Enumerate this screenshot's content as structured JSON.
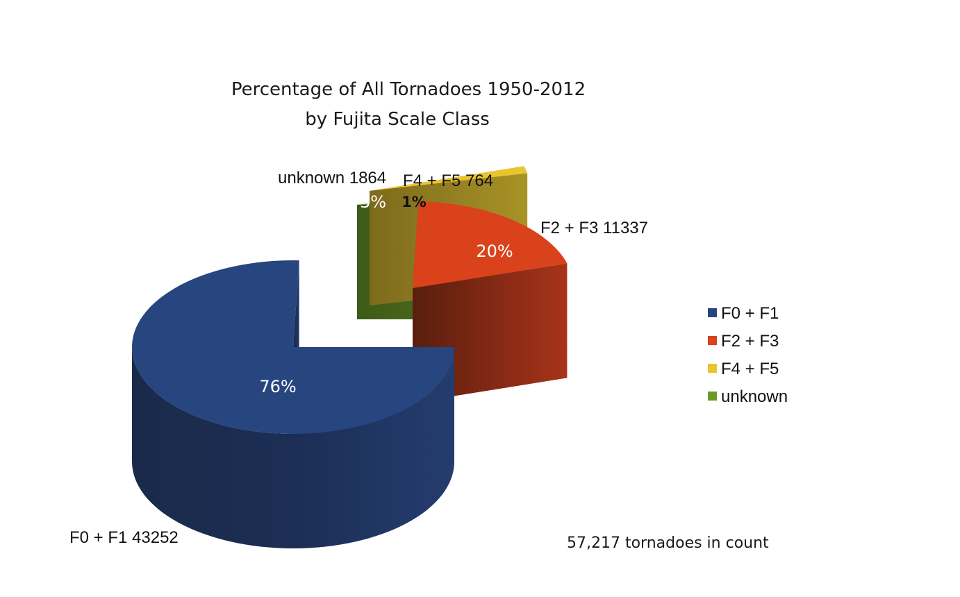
{
  "chart_data": {
    "type": "pie",
    "title": "Percentage of All Tornadoes 1950-2012",
    "subtitle": "by Fujita Scale Class",
    "categories": [
      "F0 + F1",
      "F2 + F3",
      "F4 + F5",
      "unknown"
    ],
    "values": [
      43252,
      11337,
      764,
      1864
    ],
    "percentages": [
      "76%",
      "20%",
      "1%",
      "3%"
    ],
    "slice_labels": [
      "F0 + F1 43252",
      "F2 + F3 11337",
      "F4 + F5 764",
      "unknown 1864"
    ],
    "colors": [
      "#27457f",
      "#d9421a",
      "#e8c52e",
      "#6a9a2a"
    ],
    "legend": {
      "position": "right",
      "entries": [
        "F0 + F1",
        "F2 + F3",
        "F4 + F5",
        "unknown"
      ]
    },
    "annotation": "57,217 tornadoes in count",
    "style": "3d-exploded"
  }
}
